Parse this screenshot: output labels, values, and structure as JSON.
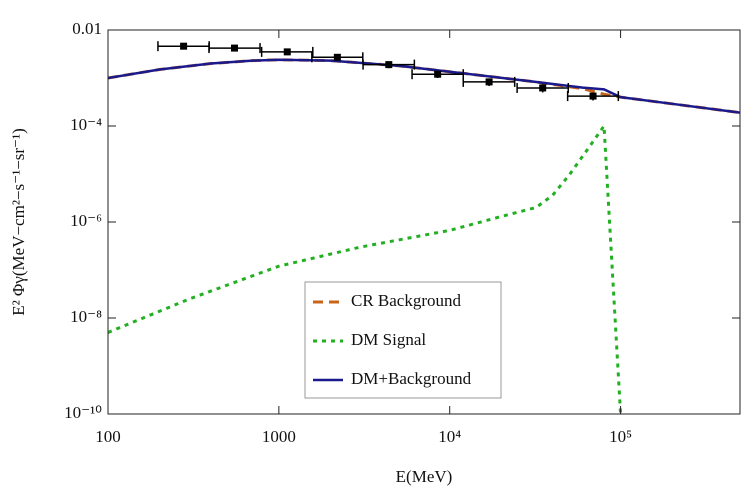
{
  "chart_data": {
    "type": "line",
    "xlabel": "E(MeV)",
    "ylabel": "E² Φγ(MeV−cm²−s⁻¹−sr⁻¹)",
    "xscale": "log",
    "yscale": "log",
    "xlim": [
      100,
      500000
    ],
    "ylim": [
      1e-10,
      0.01
    ],
    "xticks": [
      100,
      1000,
      {
        "value": 10000,
        "label": "10⁴"
      },
      {
        "value": 100000,
        "label": "10⁵"
      }
    ],
    "yticks": [
      {
        "value": 1e-10,
        "label": "10⁻¹⁰"
      },
      {
        "value": 1e-08,
        "label": "10⁻⁸"
      },
      {
        "value": 1e-06,
        "label": "10⁻⁶"
      },
      {
        "value": 0.0001,
        "label": "10⁻⁴"
      },
      0.01
    ],
    "legend_position": "bottom-center",
    "series": [
      {
        "name": "CR Background",
        "color": "#c8651b",
        "dash": "dashed",
        "x": [
          100,
          200,
          400,
          700,
          1000,
          2000,
          5000,
          10000,
          30000,
          60000,
          80000,
          100000,
          200000,
          500000
        ],
        "values": [
          0.001,
          0.0015,
          0.002,
          0.0023,
          0.0024,
          0.0023,
          0.0018,
          0.00135,
          0.00085,
          0.0006,
          0.00046,
          0.0004,
          0.00029,
          0.00019
        ]
      },
      {
        "name": "DM Signal",
        "color": "#22b022",
        "dash": "dotted",
        "x": [
          100,
          300,
          1000,
          3000,
          10000,
          20000,
          32000,
          40000,
          50000,
          65000,
          80000,
          100000
        ],
        "values": [
          5e-09,
          2.5e-08,
          1.2e-07,
          3e-07,
          6.7e-07,
          1.3e-06,
          2e-06,
          3.6e-06,
          9.5e-06,
          3.5e-05,
          0.0001,
          1e-10
        ]
      },
      {
        "name": "DM+Background",
        "color": "#1a1a8c",
        "dash": "solid",
        "x": [
          100,
          200,
          400,
          700,
          1000,
          2000,
          5000,
          10000,
          30000,
          60000,
          80000,
          100000,
          200000,
          500000
        ],
        "values": [
          0.001,
          0.0015,
          0.002,
          0.0023,
          0.0024,
          0.0023,
          0.0018,
          0.00135,
          0.00085,
          0.00063,
          0.00058,
          0.0004,
          0.00029,
          0.00019
        ]
      }
    ],
    "points": {
      "color": "#000000",
      "x": [
        277,
        550,
        1120,
        2200,
        4400,
        8500,
        17000,
        35000,
        69000
      ],
      "values": [
        0.0046,
        0.0042,
        0.0035,
        0.0027,
        0.0019,
        0.0012,
        0.00083,
        0.00062,
        0.00042
      ],
      "x_low": [
        196,
        390,
        793,
        1560,
        3110,
        6020,
        12000,
        24800,
        49000
      ],
      "x_high": [
        391,
        776,
        1580,
        3100,
        6210,
        12000,
        24000,
        49400,
        97000
      ],
      "y_low": [
        0.0041,
        0.0038,
        0.0031,
        0.0023,
        0.0016,
        0.001,
        0.00068,
        0.0005,
        0.00034
      ],
      "y_high": [
        0.0051,
        0.0046,
        0.0039,
        0.0031,
        0.0022,
        0.0014,
        0.00098,
        0.00074,
        0.0005
      ]
    }
  }
}
